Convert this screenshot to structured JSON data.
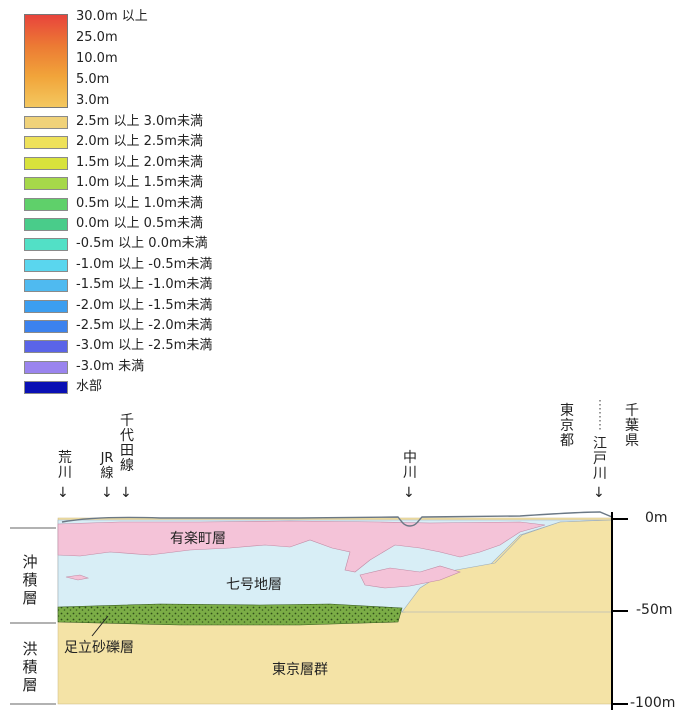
{
  "legend": {
    "gradient_labels": [
      "30.0m 以上",
      "25.0m",
      "10.0m",
      "5.0m",
      "3.0m"
    ],
    "rows": [
      {
        "label": "2.5m 以上  3.0m未満",
        "color": "#f0d27a"
      },
      {
        "label": "2.0m 以上  2.5m未満",
        "color": "#eee15a"
      },
      {
        "label": "1.5m 以上  2.0m未満",
        "color": "#d8e23c"
      },
      {
        "label": "1.0m 以上  1.5m未満",
        "color": "#a6d84a"
      },
      {
        "label": "0.5m 以上  1.0m未満",
        "color": "#5fd06a"
      },
      {
        "label": "0.0m 以上  0.5m未満",
        "color": "#49cc8a"
      },
      {
        "label": "-0.5m 以上  0.0m未満",
        "color": "#52e0c6"
      },
      {
        "label": "-1.0m 以上 -0.5m未満",
        "color": "#5ad6ee"
      },
      {
        "label": "-1.5m 以上 -1.0m未満",
        "color": "#4fbaf0"
      },
      {
        "label": "-2.0m 以上 -1.5m未満",
        "color": "#3c9ef0"
      },
      {
        "label": "-2.5m 以上 -2.0m未満",
        "color": "#3c82ee"
      },
      {
        "label": "-3.0m 以上 -2.5m未満",
        "color": "#5a64e8"
      },
      {
        "label": "-3.0m 未満",
        "color": "#9a84ee"
      },
      {
        "label": "水部",
        "color": "#0a10b4"
      }
    ],
    "gradient_colors": [
      "#e8443c",
      "#ec7a34",
      "#f1a43a",
      "#f4c860"
    ]
  },
  "cross_section": {
    "landmarks": {
      "arakawa": [
        "荒",
        "川"
      ],
      "jr": [
        "JR",
        "線"
      ],
      "chiyoda": [
        "千",
        "代",
        "田",
        "線"
      ],
      "nakagawa": [
        "中",
        "川"
      ],
      "tokyo_to": [
        "東",
        "京",
        "都"
      ],
      "edogawa": [
        "江",
        "戸",
        "川"
      ],
      "chiba": [
        "千",
        "葉",
        "県"
      ]
    },
    "arrow": "↓",
    "left_groups": {
      "alluvium": [
        "沖",
        "積",
        "層"
      ],
      "diluvium": [
        "洪",
        "積",
        "層"
      ]
    },
    "layers": {
      "yurakucho": "有楽町層",
      "nanago": "七号地層",
      "adachi": "足立砂礫層",
      "tokyo": "東京層群"
    },
    "depths": [
      "0m",
      "-50m",
      "-100m"
    ],
    "colors": {
      "yurakucho": "#f4c3d8",
      "nanago": "#d8eef6",
      "adachi": "#6fa13c",
      "tokyo": "#f4e3a6",
      "surface": "#9aa6b0"
    }
  }
}
